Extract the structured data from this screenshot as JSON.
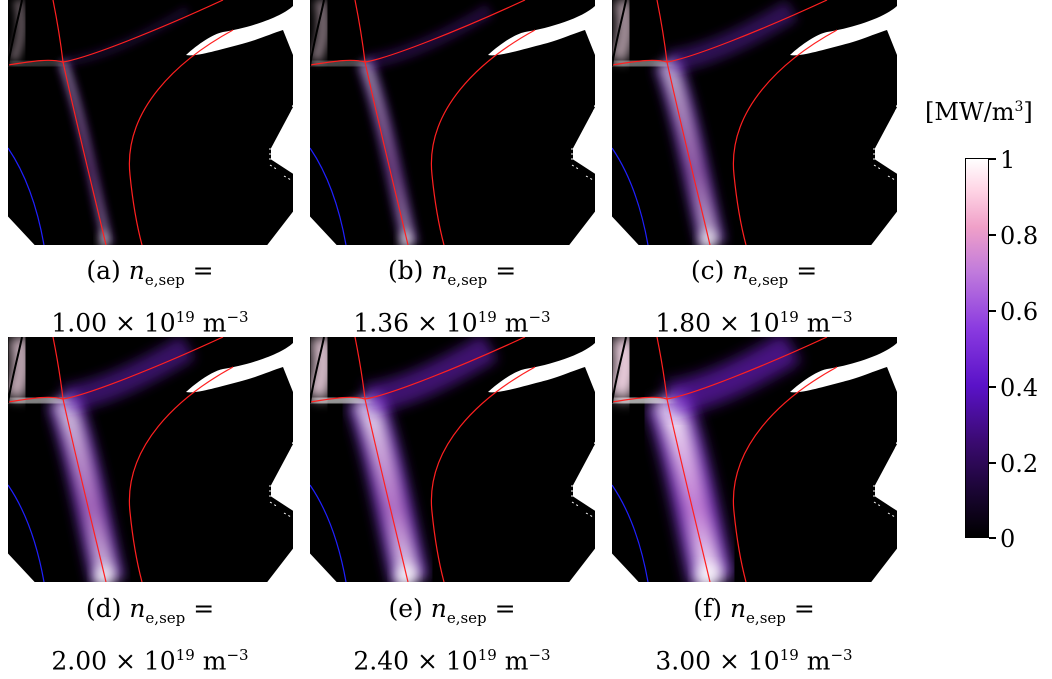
{
  "panels": [
    {
      "letter": "(a)",
      "sym": "n",
      "sub": "e,sep",
      "eq": "=",
      "mant": "1.00",
      "times": "×",
      "base": "10",
      "exp": "19",
      "unit": "m",
      "uexp": "−3",
      "intensity": 0.15
    },
    {
      "letter": "(b)",
      "sym": "n",
      "sub": "e,sep",
      "eq": "=",
      "mant": "1.36",
      "times": "×",
      "base": "10",
      "exp": "19",
      "unit": "m",
      "uexp": "−3",
      "intensity": 0.3
    },
    {
      "letter": "(c)",
      "sym": "n",
      "sub": "e,sep",
      "eq": "=",
      "mant": "1.80",
      "times": "×",
      "base": "10",
      "exp": "19",
      "unit": "m",
      "uexp": "−3",
      "intensity": 0.55
    },
    {
      "letter": "(d)",
      "sym": "n",
      "sub": "e,sep",
      "eq": "=",
      "mant": "2.00",
      "times": "×",
      "base": "10",
      "exp": "19",
      "unit": "m",
      "uexp": "−3",
      "intensity": 0.7
    },
    {
      "letter": "(e)",
      "sym": "n",
      "sub": "e,sep",
      "eq": "=",
      "mant": "2.40",
      "times": "×",
      "base": "10",
      "exp": "19",
      "unit": "m",
      "uexp": "−3",
      "intensity": 0.8
    },
    {
      "letter": "(f)",
      "sym": "n",
      "sub": "e,sep",
      "eq": "=",
      "mant": "3.00",
      "times": "×",
      "base": "10",
      "exp": "19",
      "unit": "m",
      "uexp": "−3",
      "intensity": 0.95
    }
  ],
  "colorbar": {
    "unit_open": "[MW/m",
    "unit_exp": "3",
    "unit_close": "]",
    "ticks": [
      "1",
      "0.8",
      "0.6",
      "0.4",
      "0.2",
      "0"
    ],
    "colors": [
      "#000000",
      "#3a0a70",
      "#5a12c8",
      "#c07adc",
      "#ffd6e6",
      "#ffffff"
    ]
  }
}
